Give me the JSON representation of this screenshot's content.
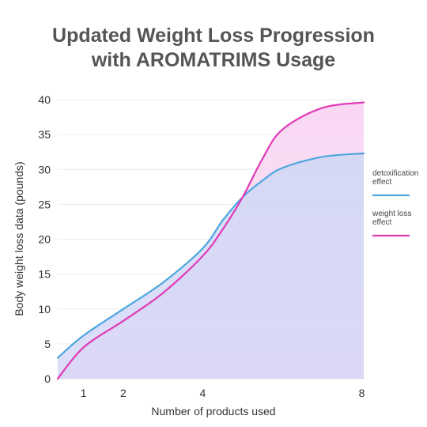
{
  "chart_data": {
    "type": "area",
    "title_lines": [
      "Updated Weight Loss Progression",
      "with AROMATRIMS Usage"
    ],
    "xlabel": "Number of products used",
    "ylabel": "Body weight loss data (pounds)",
    "x_ticks": [
      1,
      2,
      4,
      8
    ],
    "y_ticks": [
      0,
      5,
      10,
      15,
      20,
      25,
      30,
      35,
      40
    ],
    "xlim": [
      0.35,
      8.05
    ],
    "ylim": [
      0,
      40
    ],
    "grid": "horizontal",
    "legend_position": "right",
    "series": [
      {
        "name_lines": [
          "detoxification",
          "effect"
        ],
        "color": "#4da6e0",
        "x": [
          0.35,
          1,
          2,
          3,
          4,
          4.5,
          5,
          5.5,
          6,
          7,
          8.05
        ],
        "values": [
          3.0,
          6.2,
          10.0,
          13.8,
          18.7,
          22.7,
          26.0,
          28.4,
          30.2,
          31.8,
          32.3
        ]
      },
      {
        "name_lines": [
          "weight loss",
          "effect"
        ],
        "color": "#e03ab8",
        "x": [
          0.35,
          1,
          2,
          3,
          4,
          4.5,
          5,
          5.5,
          6,
          7,
          8.05
        ],
        "values": [
          0.0,
          4.5,
          8.3,
          12.3,
          17.6,
          21.4,
          26.0,
          31.5,
          35.7,
          38.8,
          39.6
        ]
      }
    ]
  }
}
